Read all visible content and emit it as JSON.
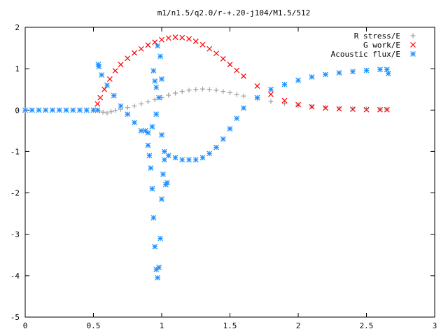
{
  "chart_data": {
    "type": "scatter",
    "title": "m1/n1.5/q2.0/r-+.20-j104/M1.5/512",
    "xlabel": "",
    "ylabel": "",
    "xlim": [
      0,
      3
    ],
    "ylim": [
      -5,
      2
    ],
    "xticks": [
      0,
      0.5,
      1,
      1.5,
      2,
      2.5,
      3
    ],
    "xtick_labels": [
      "0",
      "0.5",
      "1",
      "1.5",
      "2",
      "2.5",
      "3"
    ],
    "yticks": [
      -5,
      -4,
      -3,
      -2,
      -1,
      0,
      1,
      2
    ],
    "ytick_labels": [
      "-5",
      "-4",
      "-3",
      "-2",
      "-1",
      "0",
      "1",
      "2"
    ],
    "grid": false,
    "legend_position": "top-right",
    "series": [
      {
        "name": "R stress/E",
        "marker": "plus",
        "color": "#a0a0a0",
        "x": [
          0.54,
          0.57,
          0.6,
          0.63,
          0.66,
          0.7,
          0.75,
          0.8,
          0.85,
          0.9,
          0.95,
          1.0,
          1.05,
          1.1,
          1.15,
          1.2,
          1.25,
          1.3,
          1.35,
          1.4,
          1.45,
          1.5,
          1.55,
          1.6,
          1.7,
          1.8,
          1.9,
          2.0,
          2.1,
          2.2,
          2.3,
          2.4,
          2.5,
          2.6,
          2.65
        ],
        "y": [
          -0.02,
          -0.05,
          -0.07,
          -0.04,
          -0.01,
          0.02,
          0.06,
          0.1,
          0.15,
          0.2,
          0.25,
          0.3,
          0.36,
          0.41,
          0.45,
          0.48,
          0.5,
          0.51,
          0.5,
          0.48,
          0.45,
          0.42,
          0.38,
          0.34,
          0.27,
          0.21,
          0.16,
          0.12,
          0.09,
          0.07,
          0.05,
          0.04,
          0.03,
          0.02,
          0.02
        ]
      },
      {
        "name": "G work/E",
        "marker": "cross",
        "color": "#ff0000",
        "x": [
          0.53,
          0.55,
          0.58,
          0.62,
          0.66,
          0.7,
          0.75,
          0.8,
          0.85,
          0.9,
          0.95,
          1.0,
          1.05,
          1.1,
          1.15,
          1.2,
          1.25,
          1.3,
          1.35,
          1.4,
          1.45,
          1.5,
          1.55,
          1.6,
          1.7,
          1.8,
          1.9,
          2.0,
          2.1,
          2.2,
          2.3,
          2.4,
          2.5,
          2.6,
          2.65
        ],
        "y": [
          0.15,
          0.3,
          0.5,
          0.75,
          0.95,
          1.1,
          1.25,
          1.38,
          1.48,
          1.57,
          1.64,
          1.7,
          1.74,
          1.76,
          1.75,
          1.72,
          1.66,
          1.58,
          1.48,
          1.37,
          1.24,
          1.1,
          0.96,
          0.82,
          0.58,
          0.38,
          0.23,
          0.13,
          0.08,
          0.05,
          0.03,
          0.02,
          0.01,
          0.01,
          0.01
        ]
      },
      {
        "name": "Acoustic flux/E",
        "marker": "star",
        "color": "#1e90ff",
        "x": [
          0.0,
          0.05,
          0.1,
          0.15,
          0.2,
          0.25,
          0.3,
          0.35,
          0.4,
          0.45,
          0.5,
          0.53,
          0.535,
          0.54,
          0.56,
          0.6,
          0.65,
          0.7,
          0.75,
          0.8,
          0.85,
          0.9,
          0.93,
          0.96,
          0.98,
          1.0,
          1.02,
          1.05,
          1.1,
          1.15,
          1.2,
          1.25,
          1.3,
          1.35,
          1.4,
          1.45,
          1.5,
          1.55,
          1.6,
          1.7,
          1.8,
          1.9,
          2.0,
          2.1,
          2.2,
          2.3,
          2.4,
          2.5,
          2.6,
          2.65,
          2.66,
          0.88,
          0.9,
          0.91,
          0.92,
          0.93,
          0.94,
          0.95,
          0.96,
          0.97,
          0.98,
          0.99,
          1.0,
          1.01,
          1.02,
          1.03,
          1.04,
          0.95,
          0.97,
          0.99,
          1.0,
          0.94,
          0.96
        ],
        "y": [
          0.0,
          0.0,
          0.0,
          0.0,
          0.0,
          0.0,
          0.0,
          0.0,
          0.0,
          0.0,
          0.0,
          0.0,
          1.1,
          1.05,
          0.85,
          0.6,
          0.35,
          0.1,
          -0.1,
          -0.3,
          -0.5,
          -0.55,
          -0.4,
          -0.1,
          0.3,
          -0.6,
          -1.0,
          -1.1,
          -1.15,
          -1.2,
          -1.2,
          -1.2,
          -1.15,
          -1.05,
          -0.9,
          -0.7,
          -0.45,
          -0.2,
          0.05,
          0.3,
          0.5,
          0.62,
          0.72,
          0.8,
          0.86,
          0.9,
          0.93,
          0.96,
          0.98,
          0.98,
          0.88,
          -0.5,
          -0.85,
          -1.1,
          -1.4,
          -1.9,
          -2.6,
          -3.3,
          -3.85,
          -4.05,
          -3.8,
          -3.1,
          -2.15,
          -1.55,
          -1.2,
          -1.8,
          -1.75,
          0.7,
          1.55,
          1.3,
          0.75,
          0.95,
          0.55
        ]
      }
    ]
  }
}
